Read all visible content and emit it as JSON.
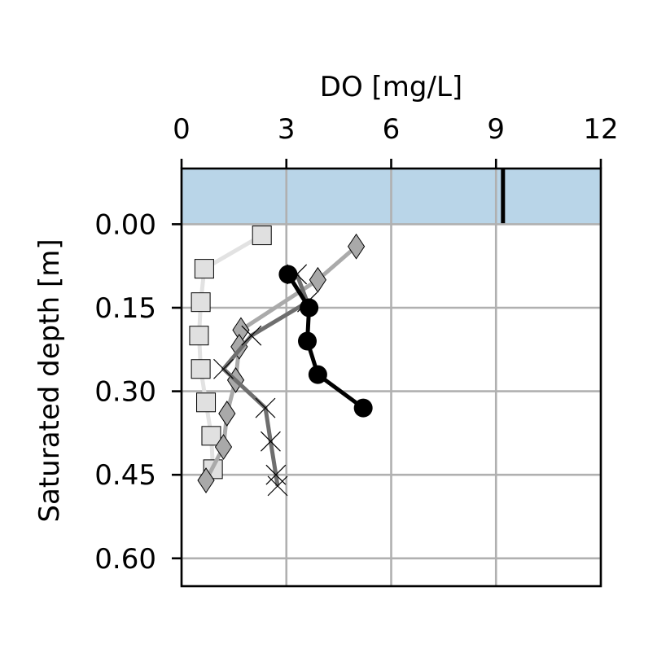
{
  "chart_data": {
    "type": "line",
    "xlabel": "DO [mg/L]",
    "ylabel": "Saturated depth [m]",
    "xlim": [
      0,
      12
    ],
    "ylim": [
      0.65,
      -0.1
    ],
    "x_axis_position": "top",
    "y_axis_inverted": true,
    "grid": true,
    "xticks": [
      0,
      3,
      6,
      9,
      12
    ],
    "xtick_labels": [
      "0",
      "3",
      "6",
      "9",
      "12"
    ],
    "yticks": [
      0.0,
      0.15,
      0.3,
      0.45,
      0.6
    ],
    "ytick_labels": [
      "0.00",
      "0.15",
      "0.30",
      "0.45",
      "0.60"
    ],
    "band": {
      "y_from": -0.1,
      "y_to": 0.0,
      "color": "#b9d5e8"
    },
    "reference_mark": {
      "x": 9.2,
      "y_from": -0.1,
      "y_to": 0.0,
      "color": "#000000"
    },
    "series": [
      {
        "name": "light-squares",
        "marker": "square",
        "line_color": "#e2e2e2",
        "marker_fill": "#e0e0e0",
        "points": [
          [
            2.3,
            0.02
          ],
          [
            0.65,
            0.08
          ],
          [
            0.55,
            0.14
          ],
          [
            0.5,
            0.2
          ],
          [
            0.55,
            0.26
          ],
          [
            0.7,
            0.32
          ],
          [
            0.85,
            0.38
          ],
          [
            0.9,
            0.44
          ]
        ]
      },
      {
        "name": "grey-diamonds",
        "marker": "diamond",
        "line_color": "#aaaaaa",
        "marker_fill": "#a9a9a9",
        "points": [
          [
            5.0,
            0.04
          ],
          [
            3.9,
            0.1
          ],
          [
            1.7,
            0.19
          ],
          [
            1.65,
            0.22
          ],
          [
            1.55,
            0.28
          ],
          [
            1.3,
            0.34
          ],
          [
            1.2,
            0.4
          ],
          [
            0.7,
            0.46
          ]
        ]
      },
      {
        "name": "dark-crosses",
        "marker": "x",
        "line_color": "#6e6e6e",
        "marker_fill": "#000000",
        "points": [
          [
            3.3,
            0.09
          ],
          [
            3.6,
            0.14
          ],
          [
            2.0,
            0.2
          ],
          [
            1.2,
            0.26
          ],
          [
            2.4,
            0.33
          ],
          [
            2.55,
            0.39
          ],
          [
            2.7,
            0.45
          ],
          [
            2.75,
            0.47
          ]
        ]
      },
      {
        "name": "black-circles",
        "marker": "circle",
        "line_color": "#000000",
        "marker_fill": "#000000",
        "points": [
          [
            3.05,
            0.09
          ],
          [
            3.65,
            0.15
          ],
          [
            3.6,
            0.21
          ],
          [
            3.9,
            0.27
          ],
          [
            5.2,
            0.33
          ]
        ]
      }
    ]
  }
}
